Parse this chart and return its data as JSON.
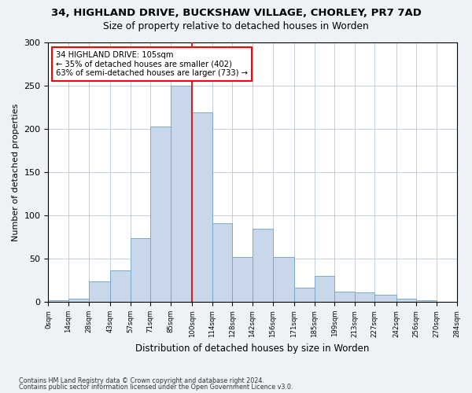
{
  "title": "34, HIGHLAND DRIVE, BUCKSHAW VILLAGE, CHORLEY, PR7 7AD",
  "subtitle": "Size of property relative to detached houses in Worden",
  "xlabel": "Distribution of detached houses by size in Worden",
  "ylabel": "Number of detached properties",
  "bar_color": "#c8d8ea",
  "bar_edge_color": "#7aaac8",
  "vline_color": "#cc2222",
  "vline_x": 100,
  "annotation_text": "34 HIGHLAND DRIVE: 105sqm\n← 35% of detached houses are smaller (402)\n63% of semi-detached houses are larger (733) →",
  "bin_edges": [
    0,
    14,
    28,
    43,
    57,
    71,
    85,
    100,
    114,
    128,
    142,
    156,
    171,
    185,
    199,
    213,
    227,
    242,
    256,
    270,
    284
  ],
  "bar_heights": [
    2,
    4,
    24,
    36,
    74,
    203,
    250,
    219,
    91,
    52,
    85,
    52,
    16,
    30,
    12,
    11,
    8,
    4,
    2,
    0
  ],
  "ylim": [
    0,
    300
  ],
  "yticks": [
    0,
    50,
    100,
    150,
    200,
    250,
    300
  ],
  "footer_line1": "Contains HM Land Registry data © Crown copyright and database right 2024.",
  "footer_line2": "Contains public sector information licensed under the Open Government Licence v3.0.",
  "background_color": "#eef2f7",
  "plot_bg_color": "#ffffff"
}
